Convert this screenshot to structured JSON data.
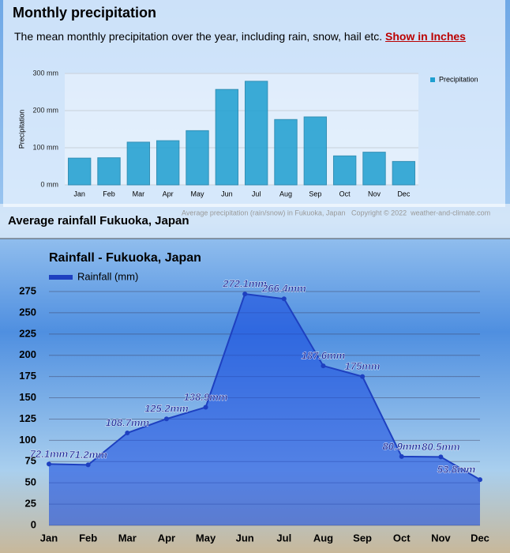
{
  "header": {
    "title": "Monthly precipitation",
    "subtitle": "The mean monthly precipitation over the year, including rain, snow, hail etc.",
    "link": "Show in Inches"
  },
  "caption": "Average precipitation (rain/snow) in Fukuoka, Japan   Copyright © 2022  weather-and-climate.com",
  "section_title": "Average rainfall Fukuoka, Japan",
  "chart_data": [
    {
      "type": "bar",
      "y_label": "Precipitation",
      "legend": "top-right",
      "categories": [
        "Jan",
        "Feb",
        "Mar",
        "Apr",
        "May",
        "Jun",
        "Jul",
        "Aug",
        "Sep",
        "Oct",
        "Nov",
        "Dec"
      ],
      "series": [
        {
          "name": "Precipitation",
          "color": "#1e9fd0",
          "values": [
            72,
            73,
            115,
            119,
            146,
            257,
            279,
            176,
            183,
            78,
            88,
            63
          ]
        }
      ],
      "ylim": [
        0,
        300
      ],
      "yticks": [
        {
          "value": 0,
          "label": "0 mm"
        },
        {
          "value": 100,
          "label": "100 mm"
        },
        {
          "value": 200,
          "label": "200 mm"
        },
        {
          "value": 300,
          "label": "300 mm"
        }
      ],
      "grid": true
    },
    {
      "type": "area",
      "title": "Rainfall - Fukuoka, Japan",
      "legend": "top-left",
      "categories": [
        "Jan",
        "Feb",
        "Mar",
        "Apr",
        "May",
        "Jun",
        "Jul",
        "Aug",
        "Sep",
        "Oct",
        "Nov",
        "Dec"
      ],
      "series": [
        {
          "name": "Rainfall (mm)",
          "color": "#1a4fe0",
          "values": [
            72.1,
            71.2,
            108.7,
            125.2,
            138.9,
            272.1,
            266.4,
            187.6,
            175,
            80.9,
            80.5,
            53.8
          ],
          "value_labels": [
            "72.1mm",
            "71.2mm",
            "108.7mm",
            "125.2mm",
            "138.9mm",
            "272.1mm",
            "266.4mm",
            "187.6mm",
            "175mm",
            "80.9mm",
            "80.5mm",
            "53.8mm"
          ]
        }
      ],
      "ylim": [
        0,
        275
      ],
      "yticks": [
        0,
        25,
        50,
        75,
        100,
        125,
        150,
        175,
        200,
        225,
        250,
        275
      ],
      "grid": true
    }
  ]
}
